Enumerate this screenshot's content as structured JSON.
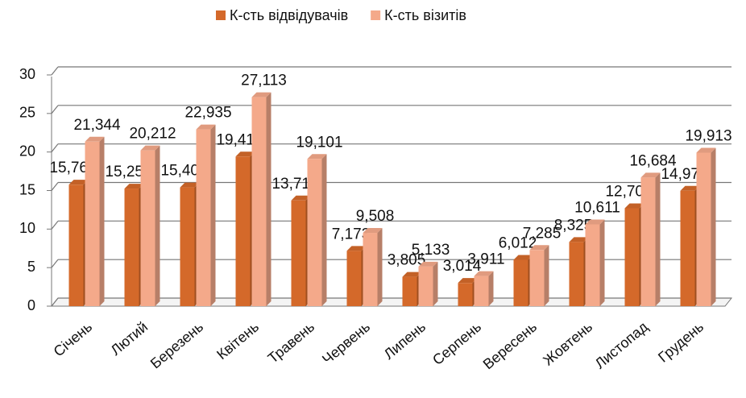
{
  "chart_data": {
    "type": "bar3d",
    "categories": [
      "Січень",
      "Лютий",
      "Березень",
      "Квітень",
      "Травень",
      "Червень",
      "Липень",
      "Серпень",
      "Вересень",
      "Жовтень",
      "Листопад",
      "Грудень"
    ],
    "series": [
      {
        "name": "К-сть відвідувачів",
        "color": "#d4692a",
        "values": [
          15.766,
          15.254,
          15.408,
          19.414,
          13.714,
          7.173,
          3.805,
          3.014,
          6.012,
          8.325,
          12.703,
          14.975
        ],
        "value_labels": [
          "15,766",
          "15,254",
          "15,408",
          "19,414",
          "13,714",
          "7,173",
          "3,805",
          "3,014",
          "6,012",
          "8,325",
          "12,703",
          "14,975"
        ]
      },
      {
        "name": "К-сть візитів",
        "color": "#f4a98a",
        "values": [
          21.344,
          20.212,
          22.935,
          27.113,
          19.101,
          9.508,
          5.133,
          3.911,
          7.285,
          10.611,
          16.684,
          19.913
        ],
        "value_labels": [
          "21,344",
          "20,212",
          "22,935",
          "27,113",
          "19,101",
          "9,508",
          "5,133",
          "3,911",
          "7,285",
          "10,611",
          "16,684",
          "19,913"
        ]
      }
    ],
    "ylim": [
      0,
      30
    ],
    "yticks": [
      0,
      5,
      10,
      15,
      20,
      25,
      30
    ],
    "grid": true,
    "legend": "top"
  }
}
